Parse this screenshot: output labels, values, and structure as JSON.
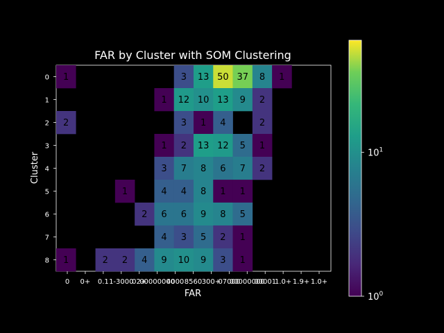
{
  "chart_data": {
    "type": "heatmap",
    "title": "FAR by Cluster with SOM Clustering",
    "xlabel": "FAR",
    "ylabel": "Cluster",
    "x_tick_labels": [
      "0",
      "0+",
      "0.1",
      "1-3000",
      "02+",
      "00000000",
      "4000",
      "8560",
      "300+",
      "07000",
      "00000000",
      "00001",
      "1.0+",
      "1.9+",
      "1.0+"
    ],
    "y_categories": [
      "0",
      "1",
      "2",
      "3",
      "4",
      "5",
      "6",
      "7",
      "8"
    ],
    "n_columns": 14,
    "colorscale": "viridis",
    "color_scale_type": "log",
    "colorbar_range": [
      1,
      60
    ],
    "colorbar_tick_labels": [
      {
        "base": "10",
        "exp": "0",
        "value": 1
      },
      {
        "base": "10",
        "exp": "1",
        "value": 10
      }
    ],
    "cells": [
      [
        1,
        null,
        null,
        null,
        null,
        null,
        3,
        13,
        50,
        37,
        8,
        1,
        null,
        null
      ],
      [
        null,
        null,
        null,
        null,
        null,
        1,
        12,
        10,
        13,
        9,
        2,
        null,
        null,
        null
      ],
      [
        2,
        null,
        null,
        null,
        null,
        null,
        3,
        1,
        4,
        null,
        2,
        null,
        null,
        null
      ],
      [
        null,
        null,
        null,
        null,
        null,
        1,
        2,
        13,
        12,
        5,
        1,
        null,
        null,
        null
      ],
      [
        null,
        null,
        null,
        null,
        null,
        3,
        7,
        8,
        6,
        7,
        2,
        null,
        null,
        null
      ],
      [
        null,
        null,
        null,
        1,
        null,
        4,
        4,
        8,
        1,
        1,
        null,
        null,
        null,
        null
      ],
      [
        null,
        null,
        null,
        null,
        2,
        6,
        6,
        9,
        8,
        5,
        null,
        null,
        null,
        null
      ],
      [
        null,
        null,
        null,
        null,
        null,
        4,
        3,
        5,
        2,
        1,
        null,
        null,
        null,
        null
      ],
      [
        1,
        null,
        2,
        2,
        4,
        9,
        10,
        9,
        3,
        1,
        null,
        null,
        null,
        null
      ]
    ]
  }
}
